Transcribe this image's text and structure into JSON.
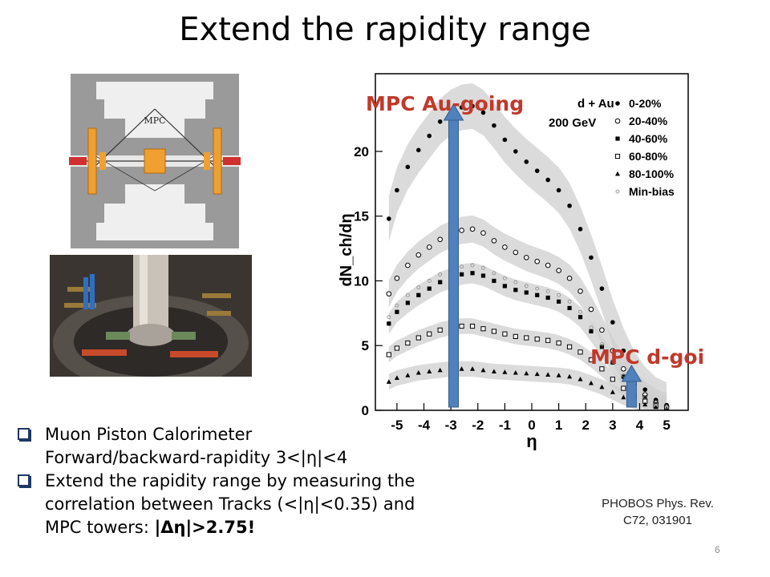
{
  "slide": {
    "title": "Extend the rapidity range",
    "number": "6"
  },
  "figure_labels": {
    "detector": "MPC"
  },
  "bullets": [
    {
      "lines": [
        "Muon Piston Calorimeter",
        "Forward/backward-rapidity 3<|η|<4"
      ]
    },
    {
      "lines": [
        "Extend the rapidity range by measuring the",
        "correlation between Tracks (<|η|<0.35) and"
      ],
      "last_plain": "MPC towers: ",
      "last_bold": "|Δη|>2.75!"
    }
  ],
  "citation": {
    "line1": "PHOBOS Phys. Rev.",
    "line2": "C72, 031901"
  },
  "colors": {
    "arrow": "#4f81bd",
    "annotation": "#c0392b",
    "band": "#cfcfcf"
  },
  "chart_data": {
    "type": "scatter",
    "ylabel": "dN_ch/dη",
    "xlabel": "η",
    "system_label": "d + Au",
    "energy_label": "200 GeV",
    "xlim": [
      -5.8,
      5.8
    ],
    "ylim": [
      0,
      26
    ],
    "xticks": [
      -5,
      -4,
      -3,
      -2,
      -1,
      0,
      1,
      2,
      3,
      4,
      5
    ],
    "yticks": [
      0,
      5,
      10,
      15,
      20
    ],
    "legend_position": "top-right",
    "annotations": [
      {
        "text": "MPC Au-going",
        "eta": -2.9
      },
      {
        "text": "MPC d-going",
        "eta": 3.7
      }
    ],
    "series": [
      {
        "name": "0-20%",
        "marker": "filled-circle",
        "x": [
          -5.3,
          -5,
          -4.6,
          -4.2,
          -3.8,
          -3.4,
          -3,
          -2.6,
          -2.2,
          -1.8,
          -1.4,
          -1,
          -0.6,
          -0.2,
          0.2,
          0.6,
          1,
          1.4,
          1.8,
          2.2,
          2.6,
          3,
          3.4,
          3.8,
          4.2,
          4.6,
          5
        ],
        "y": [
          14.8,
          17,
          18.8,
          20.1,
          21.2,
          22.3,
          23,
          23.4,
          23.5,
          23,
          22,
          20.9,
          20,
          19.2,
          18.5,
          17.8,
          17,
          15.8,
          14,
          11.8,
          9.4,
          6.8,
          4.6,
          2.8,
          1.6,
          0.8,
          0.4
        ]
      },
      {
        "name": "20-40%",
        "marker": "open-circle",
        "x": [
          -5.3,
          -5,
          -4.6,
          -4.2,
          -3.8,
          -3.4,
          -3,
          -2.6,
          -2.2,
          -1.8,
          -1.4,
          -1,
          -0.6,
          -0.2,
          0.2,
          0.6,
          1,
          1.4,
          1.8,
          2.2,
          2.6,
          3,
          3.4,
          3.8,
          4.2,
          4.6,
          5
        ],
        "y": [
          9,
          10.2,
          11.2,
          12,
          12.6,
          13.2,
          13.6,
          13.9,
          14,
          13.7,
          13.1,
          12.6,
          12.2,
          11.8,
          11.5,
          11.2,
          10.8,
          10.2,
          9.2,
          7.8,
          6.2,
          4.6,
          3.2,
          2,
          1.2,
          0.6,
          0.3
        ]
      },
      {
        "name": "40-60%",
        "marker": "filled-square",
        "x": [
          -5.3,
          -5,
          -4.6,
          -4.2,
          -3.8,
          -3.4,
          -3,
          -2.6,
          -2.2,
          -1.8,
          -1.4,
          -1,
          -0.6,
          -0.2,
          0.2,
          0.6,
          1,
          1.4,
          1.8,
          2.2,
          2.6,
          3,
          3.4,
          3.8,
          4.2,
          4.6,
          5
        ],
        "y": [
          6.7,
          7.6,
          8.3,
          8.9,
          9.4,
          9.9,
          10.2,
          10.5,
          10.6,
          10.4,
          10,
          9.6,
          9.3,
          9.1,
          8.9,
          8.7,
          8.4,
          7.9,
          7.2,
          6.1,
          4.9,
          3.7,
          2.6,
          1.6,
          1,
          0.5,
          0.25
        ]
      },
      {
        "name": "60-80%",
        "marker": "open-square",
        "x": [
          -5.3,
          -5,
          -4.6,
          -4.2,
          -3.8,
          -3.4,
          -3,
          -2.6,
          -2.2,
          -1.8,
          -1.4,
          -1,
          -0.6,
          -0.2,
          0.2,
          0.6,
          1,
          1.4,
          1.8,
          2.2,
          2.6,
          3,
          3.4,
          3.8,
          4.2,
          4.6,
          5
        ],
        "y": [
          4.3,
          4.8,
          5.2,
          5.6,
          5.9,
          6.2,
          6.4,
          6.5,
          6.5,
          6.3,
          6.1,
          5.9,
          5.7,
          5.6,
          5.5,
          5.4,
          5.2,
          4.9,
          4.5,
          3.9,
          3.2,
          2.4,
          1.7,
          1.1,
          0.7,
          0.35,
          0.2
        ]
      },
      {
        "name": "80-100%",
        "marker": "filled-triangle",
        "x": [
          -5.3,
          -5,
          -4.6,
          -4.2,
          -3.8,
          -3.4,
          -3,
          -2.6,
          -2.2,
          -1.8,
          -1.4,
          -1,
          -0.6,
          -0.2,
          0.2,
          0.6,
          1,
          1.4,
          1.8,
          2.2,
          2.6,
          3,
          3.4,
          3.8,
          4.2,
          4.6,
          5
        ],
        "y": [
          2.2,
          2.5,
          2.7,
          2.9,
          3,
          3.1,
          3.2,
          3.2,
          3.2,
          3.1,
          3,
          2.95,
          2.9,
          2.85,
          2.8,
          2.75,
          2.7,
          2.6,
          2.4,
          2.1,
          1.8,
          1.4,
          1,
          0.7,
          0.45,
          0.25,
          0.12
        ]
      },
      {
        "name": "Min-bias",
        "marker": "open-circle-small",
        "x": [
          -5.3,
          -5,
          -4.6,
          -4.2,
          -3.8,
          -3.4,
          -3,
          -2.6,
          -2.2,
          -1.8,
          -1.4,
          -1,
          -0.6,
          -0.2,
          0.2,
          0.6,
          1,
          1.4,
          1.8,
          2.2,
          2.6,
          3,
          3.4,
          3.8,
          4.2,
          4.6,
          5
        ],
        "y": [
          7.2,
          8.1,
          8.9,
          9.5,
          10,
          10.5,
          10.8,
          11.1,
          11.2,
          11,
          10.6,
          10.2,
          9.9,
          9.6,
          9.4,
          9.2,
          8.9,
          8.4,
          7.6,
          6.4,
          5.1,
          3.8,
          2.7,
          1.7,
          1,
          0.5,
          0.25
        ]
      }
    ]
  }
}
